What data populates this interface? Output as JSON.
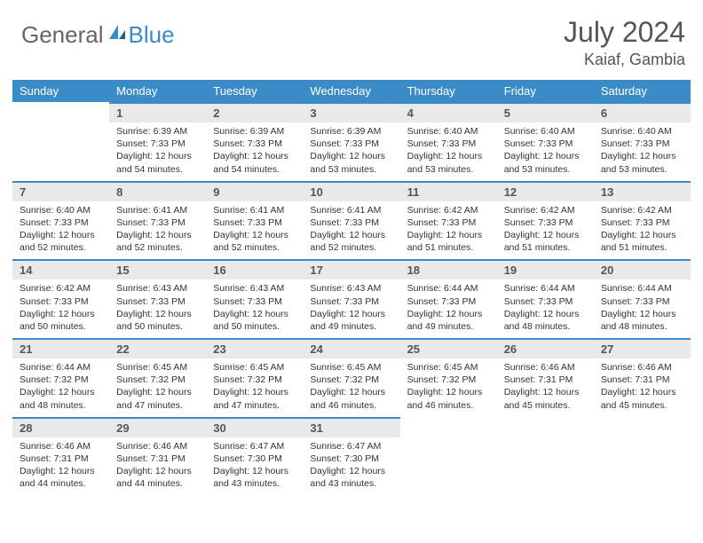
{
  "colors": {
    "brand_blue": "#3b8bc8",
    "header_bg": "#3b8bc8",
    "daynum_bg": "#e9e9e9",
    "daynum_border": "#3b8bc8",
    "text_primary": "#333333",
    "text_muted": "#555555",
    "background": "#ffffff"
  },
  "logo": {
    "text1": "General",
    "text2": "Blue"
  },
  "title": {
    "month_year": "July 2024",
    "location": "Kaiaf, Gambia"
  },
  "weekdays": [
    "Sunday",
    "Monday",
    "Tuesday",
    "Wednesday",
    "Thursday",
    "Friday",
    "Saturday"
  ],
  "layout": {
    "first_weekday_index": 1,
    "days_in_month": 31
  },
  "days": {
    "1": {
      "sunrise": "Sunrise: 6:39 AM",
      "sunset": "Sunset: 7:33 PM",
      "daylight": "Daylight: 12 hours and 54 minutes."
    },
    "2": {
      "sunrise": "Sunrise: 6:39 AM",
      "sunset": "Sunset: 7:33 PM",
      "daylight": "Daylight: 12 hours and 54 minutes."
    },
    "3": {
      "sunrise": "Sunrise: 6:39 AM",
      "sunset": "Sunset: 7:33 PM",
      "daylight": "Daylight: 12 hours and 53 minutes."
    },
    "4": {
      "sunrise": "Sunrise: 6:40 AM",
      "sunset": "Sunset: 7:33 PM",
      "daylight": "Daylight: 12 hours and 53 minutes."
    },
    "5": {
      "sunrise": "Sunrise: 6:40 AM",
      "sunset": "Sunset: 7:33 PM",
      "daylight": "Daylight: 12 hours and 53 minutes."
    },
    "6": {
      "sunrise": "Sunrise: 6:40 AM",
      "sunset": "Sunset: 7:33 PM",
      "daylight": "Daylight: 12 hours and 53 minutes."
    },
    "7": {
      "sunrise": "Sunrise: 6:40 AM",
      "sunset": "Sunset: 7:33 PM",
      "daylight": "Daylight: 12 hours and 52 minutes."
    },
    "8": {
      "sunrise": "Sunrise: 6:41 AM",
      "sunset": "Sunset: 7:33 PM",
      "daylight": "Daylight: 12 hours and 52 minutes."
    },
    "9": {
      "sunrise": "Sunrise: 6:41 AM",
      "sunset": "Sunset: 7:33 PM",
      "daylight": "Daylight: 12 hours and 52 minutes."
    },
    "10": {
      "sunrise": "Sunrise: 6:41 AM",
      "sunset": "Sunset: 7:33 PM",
      "daylight": "Daylight: 12 hours and 52 minutes."
    },
    "11": {
      "sunrise": "Sunrise: 6:42 AM",
      "sunset": "Sunset: 7:33 PM",
      "daylight": "Daylight: 12 hours and 51 minutes."
    },
    "12": {
      "sunrise": "Sunrise: 6:42 AM",
      "sunset": "Sunset: 7:33 PM",
      "daylight": "Daylight: 12 hours and 51 minutes."
    },
    "13": {
      "sunrise": "Sunrise: 6:42 AM",
      "sunset": "Sunset: 7:33 PM",
      "daylight": "Daylight: 12 hours and 51 minutes."
    },
    "14": {
      "sunrise": "Sunrise: 6:42 AM",
      "sunset": "Sunset: 7:33 PM",
      "daylight": "Daylight: 12 hours and 50 minutes."
    },
    "15": {
      "sunrise": "Sunrise: 6:43 AM",
      "sunset": "Sunset: 7:33 PM",
      "daylight": "Daylight: 12 hours and 50 minutes."
    },
    "16": {
      "sunrise": "Sunrise: 6:43 AM",
      "sunset": "Sunset: 7:33 PM",
      "daylight": "Daylight: 12 hours and 50 minutes."
    },
    "17": {
      "sunrise": "Sunrise: 6:43 AM",
      "sunset": "Sunset: 7:33 PM",
      "daylight": "Daylight: 12 hours and 49 minutes."
    },
    "18": {
      "sunrise": "Sunrise: 6:44 AM",
      "sunset": "Sunset: 7:33 PM",
      "daylight": "Daylight: 12 hours and 49 minutes."
    },
    "19": {
      "sunrise": "Sunrise: 6:44 AM",
      "sunset": "Sunset: 7:33 PM",
      "daylight": "Daylight: 12 hours and 48 minutes."
    },
    "20": {
      "sunrise": "Sunrise: 6:44 AM",
      "sunset": "Sunset: 7:33 PM",
      "daylight": "Daylight: 12 hours and 48 minutes."
    },
    "21": {
      "sunrise": "Sunrise: 6:44 AM",
      "sunset": "Sunset: 7:32 PM",
      "daylight": "Daylight: 12 hours and 48 minutes."
    },
    "22": {
      "sunrise": "Sunrise: 6:45 AM",
      "sunset": "Sunset: 7:32 PM",
      "daylight": "Daylight: 12 hours and 47 minutes."
    },
    "23": {
      "sunrise": "Sunrise: 6:45 AM",
      "sunset": "Sunset: 7:32 PM",
      "daylight": "Daylight: 12 hours and 47 minutes."
    },
    "24": {
      "sunrise": "Sunrise: 6:45 AM",
      "sunset": "Sunset: 7:32 PM",
      "daylight": "Daylight: 12 hours and 46 minutes."
    },
    "25": {
      "sunrise": "Sunrise: 6:45 AM",
      "sunset": "Sunset: 7:32 PM",
      "daylight": "Daylight: 12 hours and 46 minutes."
    },
    "26": {
      "sunrise": "Sunrise: 6:46 AM",
      "sunset": "Sunset: 7:31 PM",
      "daylight": "Daylight: 12 hours and 45 minutes."
    },
    "27": {
      "sunrise": "Sunrise: 6:46 AM",
      "sunset": "Sunset: 7:31 PM",
      "daylight": "Daylight: 12 hours and 45 minutes."
    },
    "28": {
      "sunrise": "Sunrise: 6:46 AM",
      "sunset": "Sunset: 7:31 PM",
      "daylight": "Daylight: 12 hours and 44 minutes."
    },
    "29": {
      "sunrise": "Sunrise: 6:46 AM",
      "sunset": "Sunset: 7:31 PM",
      "daylight": "Daylight: 12 hours and 44 minutes."
    },
    "30": {
      "sunrise": "Sunrise: 6:47 AM",
      "sunset": "Sunset: 7:30 PM",
      "daylight": "Daylight: 12 hours and 43 minutes."
    },
    "31": {
      "sunrise": "Sunrise: 6:47 AM",
      "sunset": "Sunset: 7:30 PM",
      "daylight": "Daylight: 12 hours and 43 minutes."
    }
  }
}
